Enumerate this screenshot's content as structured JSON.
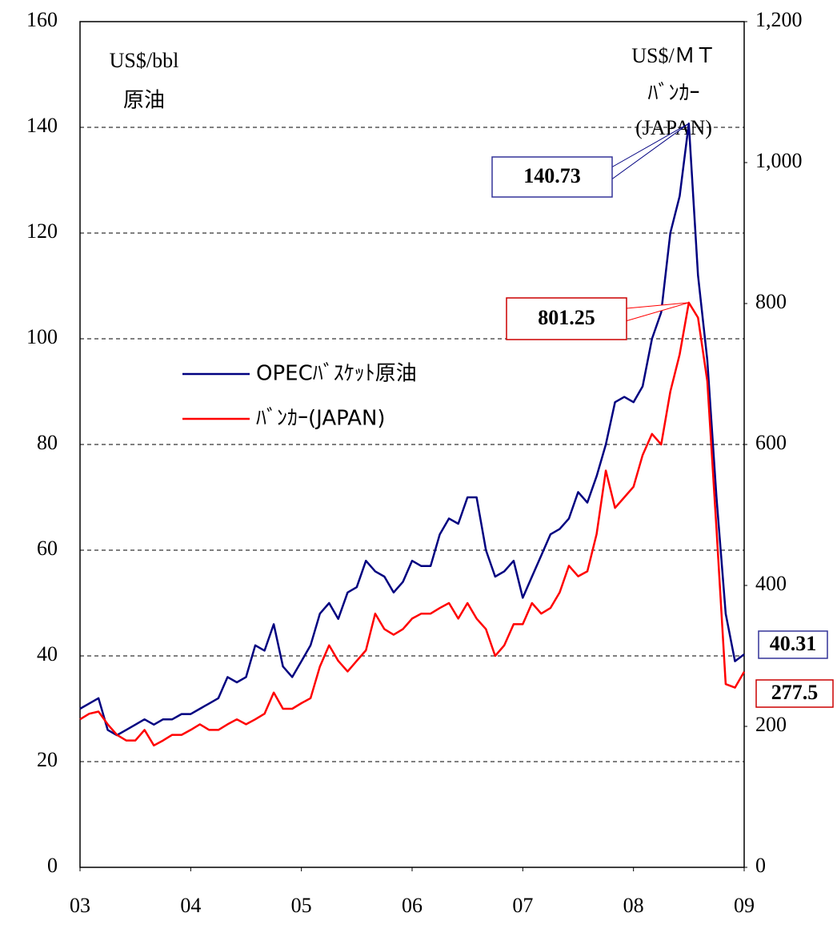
{
  "chart_data": {
    "type": "line",
    "ylabel": [
      "US$/bbl",
      "原油"
    ],
    "y2label": [
      "US$/ＭＴ",
      "ﾊﾞﾝｶｰ",
      "(JAPAN)"
    ],
    "x": [
      2003,
      2003.083,
      2003.167,
      2003.25,
      2003.333,
      2003.417,
      2003.5,
      2003.583,
      2003.667,
      2003.75,
      2003.833,
      2003.917,
      2004,
      2004.083,
      2004.167,
      2004.25,
      2004.333,
      2004.417,
      2004.5,
      2004.583,
      2004.667,
      2004.75,
      2004.833,
      2004.917,
      2005,
      2005.083,
      2005.167,
      2005.25,
      2005.333,
      2005.417,
      2005.5,
      2005.583,
      2005.667,
      2005.75,
      2005.833,
      2005.917,
      2006,
      2006.083,
      2006.167,
      2006.25,
      2006.333,
      2006.417,
      2006.5,
      2006.583,
      2006.667,
      2006.75,
      2006.833,
      2006.917,
      2007,
      2007.083,
      2007.167,
      2007.25,
      2007.333,
      2007.417,
      2007.5,
      2007.583,
      2007.667,
      2007.75,
      2007.833,
      2007.917,
      2008,
      2008.083,
      2008.167,
      2008.25,
      2008.333,
      2008.417,
      2008.5,
      2008.583,
      2008.667,
      2008.75,
      2008.833,
      2008.917,
      2009
    ],
    "series": [
      {
        "name": "OPECﾊﾞｽｹｯﾄ原油",
        "color": "#000080",
        "label_color": "#333399",
        "values": [
          30,
          31,
          32,
          26,
          25,
          26,
          27,
          28,
          27,
          28,
          28,
          29,
          29,
          30,
          31,
          32,
          36,
          35,
          36,
          42,
          41,
          46,
          38,
          36,
          39,
          42,
          48,
          50,
          47,
          52,
          53,
          58,
          56,
          55,
          52,
          54,
          58,
          57,
          57,
          63,
          66,
          65,
          70,
          70,
          60,
          55,
          56,
          58,
          51,
          55,
          59,
          63,
          64,
          66,
          71,
          69,
          74,
          80,
          88,
          89,
          88,
          91,
          100,
          105,
          120,
          127,
          140.73,
          112,
          96,
          70,
          48,
          39,
          40.31
        ]
      },
      {
        "name": "ﾊﾞﾝｶｰ(JAPAN)",
        "color": "#ff0000",
        "label_color": "#cc0000",
        "axis": "y2",
        "values": [
          210,
          218,
          221,
          203,
          188,
          180,
          180,
          195,
          173,
          180,
          188,
          188,
          195,
          203,
          195,
          195,
          203,
          210,
          203,
          210,
          218,
          248,
          225,
          225,
          233,
          240,
          285,
          315,
          293,
          278,
          293,
          308,
          360,
          338,
          330,
          338,
          353,
          360,
          360,
          368,
          375,
          353,
          375,
          353,
          338,
          300,
          315,
          345,
          345,
          375,
          360,
          368,
          390,
          428,
          413,
          420,
          473,
          563,
          510,
          525,
          540,
          585,
          615,
          600,
          675,
          728,
          801.25,
          780,
          690,
          480,
          260,
          255,
          277.5
        ]
      }
    ],
    "xlim": [
      2003,
      2009
    ],
    "xticks": [
      {
        "value": 2003,
        "label": "03"
      },
      {
        "value": 2004,
        "label": "04"
      },
      {
        "value": 2005,
        "label": "05"
      },
      {
        "value": 2006,
        "label": "06"
      },
      {
        "value": 2007,
        "label": "07"
      },
      {
        "value": 2008,
        "label": "08"
      },
      {
        "value": 2009,
        "label": "09"
      }
    ],
    "ylim": [
      0,
      160
    ],
    "yticks": [
      0,
      20,
      40,
      60,
      80,
      100,
      120,
      140,
      160
    ],
    "y2lim": [
      0,
      1200
    ],
    "y2ticks": [
      0,
      200,
      400,
      600,
      800,
      {
        "value": 1000,
        "label": "1,000"
      },
      {
        "value": 1200,
        "label": "1,200"
      }
    ],
    "grid": true
  }
}
